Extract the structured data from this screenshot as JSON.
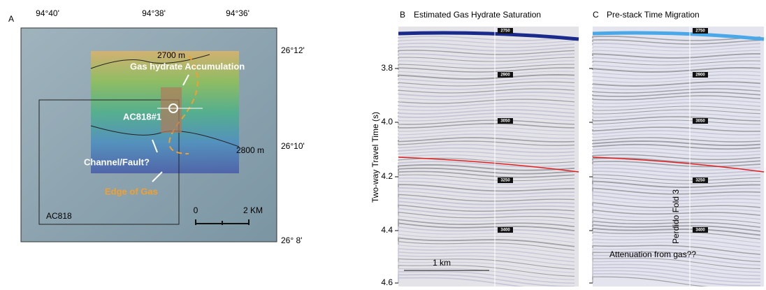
{
  "panel_a": {
    "label": "A",
    "lon_labels": [
      "94°40'",
      "94°38'",
      "94°36'"
    ],
    "lat_labels": [
      "26°12'",
      "26°10'",
      "26° 8'"
    ],
    "contours": [
      "2700 m",
      "2800 m"
    ],
    "annotations": [
      "Gas hydrate Accumulation",
      "AC818#1",
      "Channel/Fault?",
      "Edge of Gas"
    ],
    "block": "AC818",
    "scale": [
      "0",
      "2 KM"
    ]
  },
  "panel_b": {
    "label": "B",
    "title": "Estimated Gas Hydrate Saturation",
    "y_axis_label": "Two-way Travel Time (s)",
    "yticks": [
      "3.8",
      "4.0",
      "4.2",
      "4.4",
      "4.6"
    ],
    "depth_labels": [
      "2750",
      "2900",
      "3050",
      "3250",
      "3400"
    ],
    "scale": "1 km"
  },
  "panel_c": {
    "label": "C",
    "title": "Pre-stack Time Migration",
    "depth_labels": [
      "2750",
      "2900",
      "3050",
      "3250",
      "3400"
    ],
    "annotations": [
      "Perdido Fold 3",
      "Attenuation from gas??"
    ]
  }
}
